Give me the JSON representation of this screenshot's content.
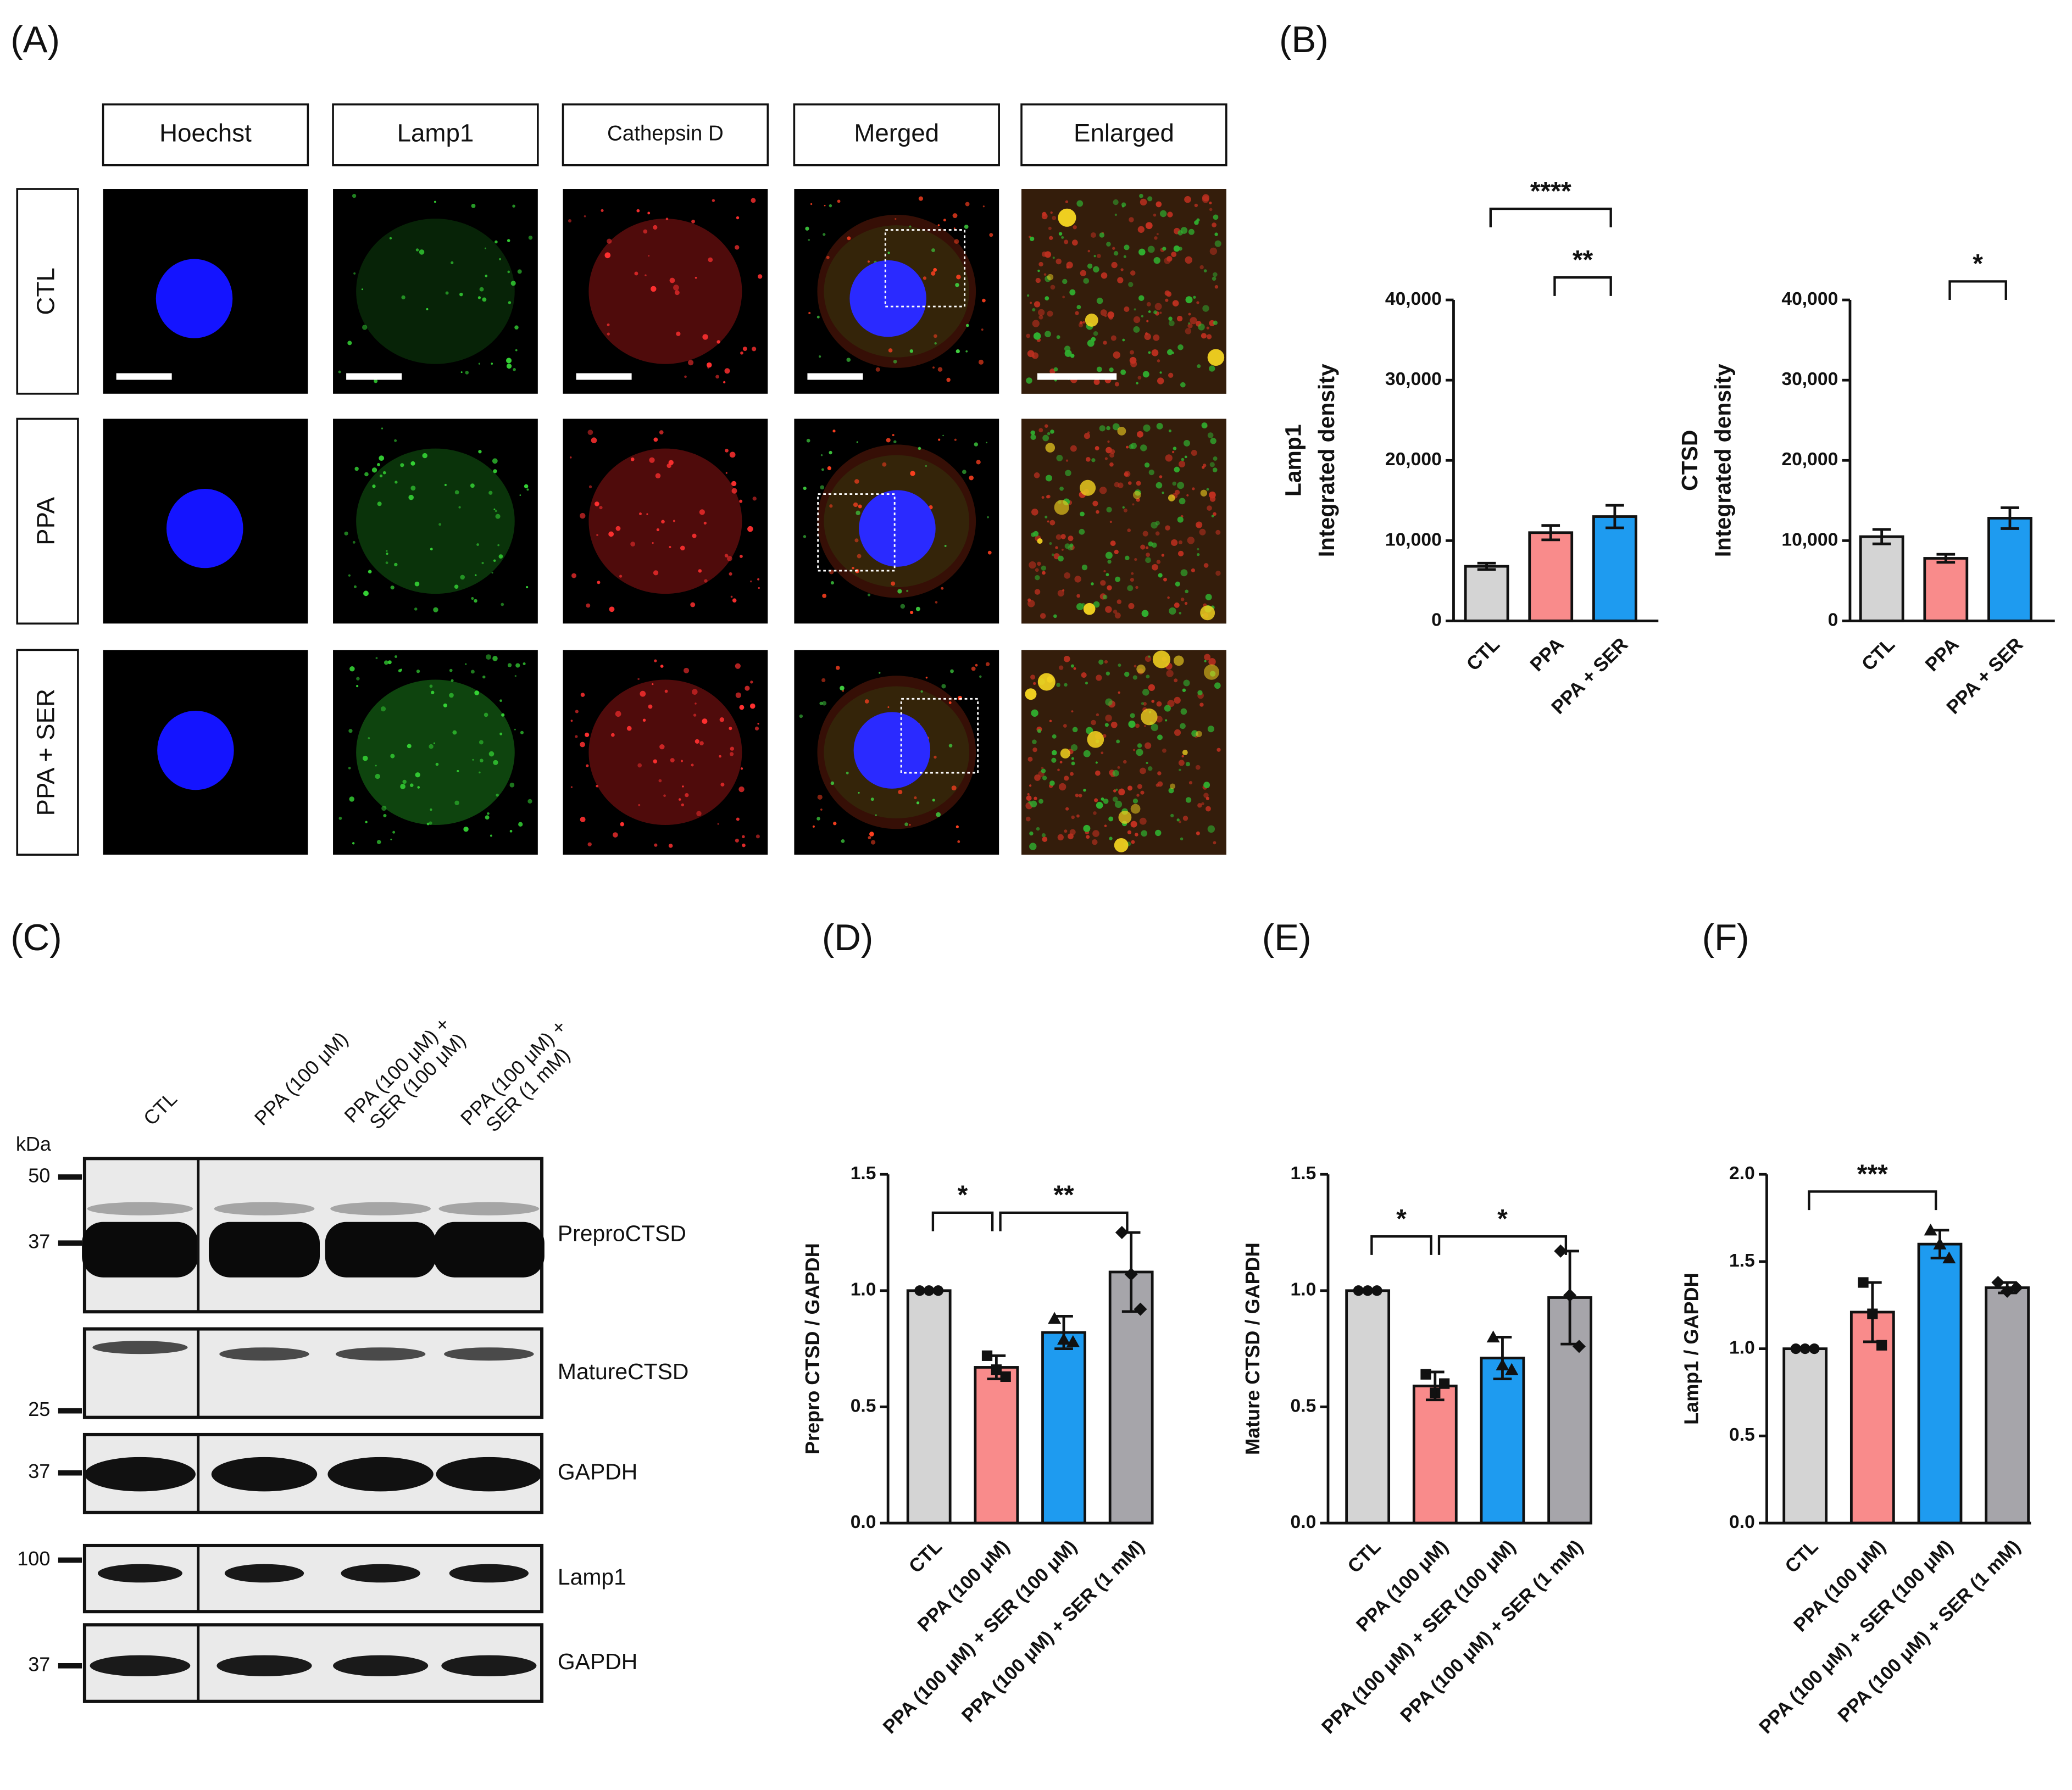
{
  "panel_labels": [
    "(A)",
    "(B)",
    "(C)",
    "(D)",
    "(E)",
    "(F)"
  ],
  "microscopy": {
    "columns": [
      "Hoechst",
      "Lamp1",
      "Cathepsin D",
      "Merged",
      "Enlarged"
    ],
    "rows": [
      "CTL",
      "PPA",
      "PPA + SER"
    ]
  },
  "western_blot": {
    "lanes": [
      [
        "CTL"
      ],
      [
        "PPA (100 μM)"
      ],
      [
        "PPA (100 μM) +",
        "SER (100 μM)"
      ],
      [
        "PPA (100 μM) +",
        "SER (1 mM)"
      ]
    ],
    "unit": "kDa",
    "markers": [
      50,
      37,
      25,
      37,
      100,
      37
    ],
    "blots": [
      "PreproCTSD",
      "MatureCTSD",
      "GAPDH",
      "Lamp1",
      "GAPDH"
    ]
  },
  "chart_data": [
    {
      "type": "bar",
      "ylabel": [
        "Lamp1",
        "Integrated density"
      ],
      "categories": [
        "CTL",
        "PPA",
        "PPA + SER"
      ],
      "values": [
        6800,
        11000,
        13000
      ],
      "errors": [
        400,
        900,
        1400
      ],
      "colors": [
        "#d4d4d4",
        "#f98b8b",
        "#1e9bf0"
      ],
      "ylim": [
        0,
        40000
      ],
      "yticks": [
        0,
        {
          "value": 10000,
          "label": "10,000"
        },
        {
          "value": 20000,
          "label": "20,000"
        },
        {
          "value": 30000,
          "label": "30,000"
        },
        {
          "value": 40000,
          "label": "40,000"
        }
      ],
      "significance": [
        {
          "pair": [
            0,
            2
          ],
          "label": "****"
        },
        {
          "pair": [
            1,
            2
          ],
          "label": "**"
        }
      ]
    },
    {
      "type": "bar",
      "ylabel": [
        "CTSD",
        "Integrated density"
      ],
      "categories": [
        "CTL",
        "PPA",
        "PPA + SER"
      ],
      "values": [
        10500,
        7800,
        12800
      ],
      "errors": [
        900,
        500,
        1300
      ],
      "colors": [
        "#d4d4d4",
        "#f98b8b",
        "#1e9bf0"
      ],
      "ylim": [
        0,
        40000
      ],
      "yticks": [
        0,
        {
          "value": 10000,
          "label": "10,000"
        },
        {
          "value": 20000,
          "label": "20,000"
        },
        {
          "value": 30000,
          "label": "30,000"
        },
        {
          "value": 40000,
          "label": "40,000"
        }
      ],
      "significance": [
        {
          "pair": [
            1,
            2
          ],
          "label": "*"
        }
      ]
    },
    {
      "type": "bar",
      "ylabel": "Prepro CTSD / GAPDH",
      "categories": [
        "CTL",
        "PPA (100 μM)",
        "PPA (100 μM) + SER (100 μM)",
        "PPA (100 μM) + SER (1 mM)"
      ],
      "values": [
        1,
        0.67,
        0.82,
        1.08
      ],
      "errors": [
        0,
        0.05,
        0.07,
        0.17
      ],
      "points": [
        [
          1,
          1,
          1
        ],
        [
          0.72,
          0.66,
          0.63
        ],
        [
          0.88,
          0.79,
          0.78
        ],
        [
          1.25,
          1.07,
          0.92
        ]
      ],
      "colors": [
        "#d4d4d4",
        "#f98b8b",
        "#1e9bf0",
        "#a6a5aa"
      ],
      "ylim": [
        0,
        1.5
      ],
      "yticks": [
        {
          "value": 0,
          "label": "0.0"
        },
        0.5,
        {
          "value": 1,
          "label": "1.0"
        },
        1.5
      ],
      "significance": [
        {
          "pair": [
            0,
            1
          ],
          "label": "*"
        },
        {
          "pair": [
            1,
            3
          ],
          "label": "**"
        }
      ]
    },
    {
      "type": "bar",
      "ylabel": "Mature CTSD / GAPDH",
      "categories": [
        "CTL",
        "PPA (100 μM)",
        "PPA (100 μM) + SER (100 μM)",
        "PPA (100 μM) + SER (1 mM)"
      ],
      "values": [
        1,
        0.59,
        0.71,
        0.97
      ],
      "errors": [
        0,
        0.06,
        0.09,
        0.2
      ],
      "points": [
        [
          1,
          1,
          1
        ],
        [
          0.64,
          0.56,
          0.6
        ],
        [
          0.8,
          0.68,
          0.66
        ],
        [
          1.17,
          0.98,
          0.76
        ]
      ],
      "colors": [
        "#d4d4d4",
        "#f98b8b",
        "#1e9bf0",
        "#a6a5aa"
      ],
      "ylim": [
        0,
        1.5
      ],
      "yticks": [
        {
          "value": 0,
          "label": "0.0"
        },
        0.5,
        {
          "value": 1,
          "label": "1.0"
        },
        1.5
      ],
      "significance": [
        {
          "pair": [
            0,
            1
          ],
          "label": "*"
        },
        {
          "pair": [
            1,
            3
          ],
          "label": "*"
        }
      ]
    },
    {
      "type": "bar",
      "ylabel": "Lamp1 / GAPDH",
      "categories": [
        "CTL",
        "PPA (100 μM)",
        "PPA (100 μM) + SER (100 μM)",
        "PPA (100 μM) + SER (1 mM)"
      ],
      "values": [
        1,
        1.21,
        1.6,
        1.35
      ],
      "errors": [
        0,
        0.17,
        0.08,
        0.03
      ],
      "points": [
        [
          1,
          1,
          1
        ],
        [
          1.38,
          1.2,
          1.02
        ],
        [
          1.68,
          1.6,
          1.52
        ],
        [
          1.38,
          1.33,
          1.35
        ]
      ],
      "colors": [
        "#d4d4d4",
        "#f98b8b",
        "#1e9bf0",
        "#a6a5aa"
      ],
      "ylim": [
        0,
        2
      ],
      "yticks": [
        {
          "value": 0,
          "label": "0.0"
        },
        0.5,
        {
          "value": 1,
          "label": "1.0"
        },
        1.5,
        {
          "value": 2,
          "label": "2.0"
        }
      ],
      "significance": [
        {
          "pair": [
            0,
            2
          ],
          "label": "***"
        }
      ]
    }
  ]
}
